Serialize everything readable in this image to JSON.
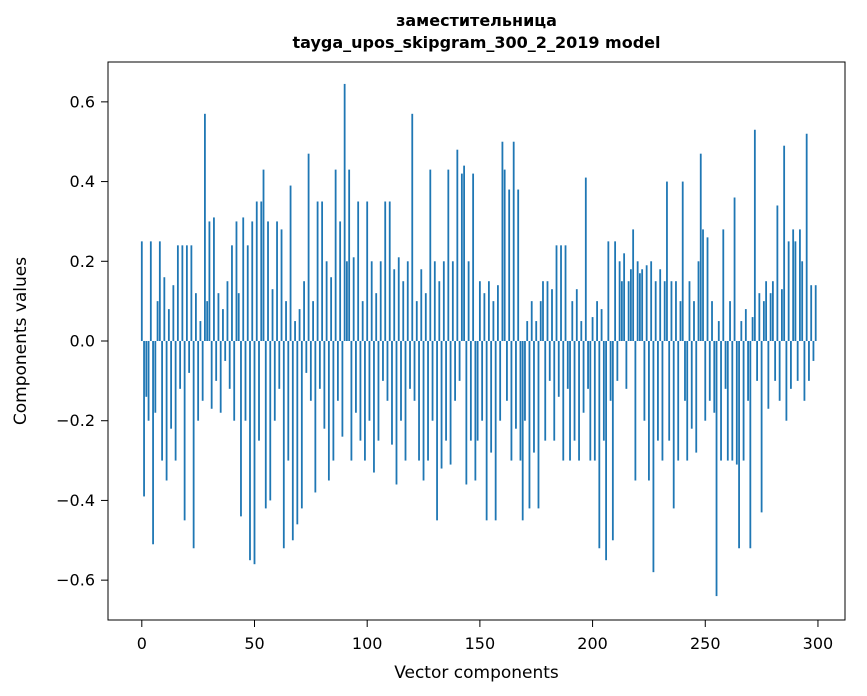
{
  "title": {
    "line1": "заместительница",
    "line2": "tayga_upos_skipgram_300_2_2019 model"
  },
  "chart_data": {
    "type": "bar",
    "title": "заместительница — tayga_upos_skipgram_300_2_2019 model",
    "xlabel": "Vector components",
    "ylabel": "Components values",
    "xlim": [
      -15,
      312
    ],
    "ylim": [
      -0.7,
      0.7
    ],
    "grid": false,
    "legend": null,
    "bar_color": "#1f77b4",
    "x_ticks": [
      0,
      50,
      100,
      150,
      200,
      250,
      300
    ],
    "x_tick_labels": [
      "0",
      "50",
      "100",
      "150",
      "200",
      "250",
      "300"
    ],
    "y_ticks": [
      0.6,
      0.4,
      0.2,
      0.0,
      -0.2,
      -0.4,
      -0.6
    ],
    "y_tick_labels": [
      "0.6",
      "0.4",
      "0.2",
      "0.0",
      "−0.2",
      "−0.4",
      "−0.6"
    ],
    "values": [
      0.25,
      -0.39,
      -0.14,
      -0.2,
      0.25,
      -0.51,
      -0.18,
      0.1,
      0.25,
      -0.3,
      0.16,
      -0.35,
      0.08,
      -0.22,
      0.14,
      -0.3,
      0.24,
      -0.12,
      0.24,
      -0.45,
      0.24,
      -0.08,
      0.24,
      -0.52,
      0.12,
      -0.2,
      0.05,
      -0.15,
      0.57,
      0.1,
      0.3,
      -0.17,
      0.31,
      -0.1,
      0.12,
      -0.18,
      0.08,
      -0.05,
      0.15,
      -0.12,
      0.24,
      -0.2,
      0.3,
      0.12,
      -0.44,
      0.31,
      -0.2,
      0.24,
      -0.55,
      0.3,
      -0.56,
      0.35,
      -0.25,
      0.35,
      0.43,
      -0.42,
      0.3,
      -0.4,
      0.13,
      -0.2,
      0.3,
      -0.12,
      0.28,
      -0.52,
      0.1,
      -0.3,
      0.39,
      -0.5,
      0.05,
      -0.46,
      0.08,
      -0.42,
      0.15,
      -0.08,
      0.47,
      -0.15,
      0.1,
      -0.38,
      0.35,
      -0.12,
      0.35,
      -0.22,
      0.2,
      -0.35,
      0.16,
      -0.3,
      0.43,
      -0.15,
      0.3,
      -0.24,
      0.645,
      0.2,
      0.43,
      -0.3,
      0.21,
      -0.18,
      0.35,
      -0.25,
      0.1,
      -0.3,
      0.35,
      -0.2,
      0.2,
      -0.33,
      0.12,
      -0.25,
      0.2,
      -0.1,
      0.35,
      -0.15,
      0.35,
      -0.26,
      0.18,
      -0.36,
      0.21,
      -0.2,
      0.15,
      -0.3,
      0.2,
      -0.12,
      0.57,
      -0.15,
      0.1,
      -0.3,
      0.18,
      -0.35,
      0.12,
      -0.3,
      0.43,
      -0.2,
      0.2,
      -0.45,
      0.15,
      -0.32,
      0.2,
      -0.25,
      0.43,
      -0.31,
      0.2,
      -0.15,
      0.48,
      -0.1,
      0.42,
      0.44,
      -0.36,
      0.2,
      -0.25,
      0.42,
      -0.35,
      -0.25,
      0.15,
      -0.2,
      0.12,
      -0.45,
      0.15,
      -0.28,
      0.1,
      -0.45,
      0.14,
      -0.2,
      0.5,
      0.43,
      -0.15,
      0.38,
      -0.3,
      0.5,
      -0.22,
      0.38,
      -0.3,
      -0.45,
      -0.2,
      0.05,
      -0.42,
      0.1,
      -0.28,
      0.05,
      -0.42,
      0.1,
      0.15,
      -0.25,
      0.15,
      -0.1,
      0.13,
      -0.25,
      0.24,
      -0.14,
      0.24,
      -0.3,
      0.24,
      -0.12,
      -0.3,
      0.1,
      -0.25,
      0.13,
      -0.3,
      0.05,
      -0.18,
      0.41,
      -0.12,
      -0.3,
      0.06,
      -0.3,
      0.1,
      -0.52,
      0.08,
      -0.25,
      -0.55,
      0.25,
      -0.15,
      -0.5,
      0.25,
      -0.1,
      0.2,
      0.15,
      0.22,
      -0.12,
      0.15,
      0.18,
      0.28,
      -0.35,
      0.2,
      0.17,
      0.18,
      -0.2,
      0.19,
      -0.35,
      0.2,
      -0.58,
      0.15,
      -0.25,
      0.18,
      -0.3,
      0.15,
      0.4,
      -0.25,
      0.15,
      -0.42,
      0.15,
      -0.3,
      0.1,
      0.4,
      -0.15,
      -0.3,
      0.15,
      -0.22,
      0.1,
      -0.28,
      0.2,
      0.47,
      0.28,
      -0.2,
      0.26,
      -0.15,
      0.1,
      -0.18,
      -0.64,
      0.05,
      -0.3,
      0.28,
      -0.12,
      -0.3,
      0.1,
      -0.3,
      0.36,
      -0.31,
      -0.52,
      0.05,
      -0.3,
      0.08,
      -0.15,
      -0.52,
      0.06,
      0.53,
      -0.1,
      0.12,
      -0.43,
      0.1,
      0.15,
      -0.17,
      0.12,
      0.15,
      -0.1,
      0.34,
      -0.15,
      0.13,
      0.49,
      -0.2,
      0.25,
      -0.12,
      0.28,
      0.25,
      -0.1,
      0.28,
      0.2,
      -0.15,
      0.52,
      -0.1,
      0.14,
      -0.05,
      0.14
    ]
  }
}
